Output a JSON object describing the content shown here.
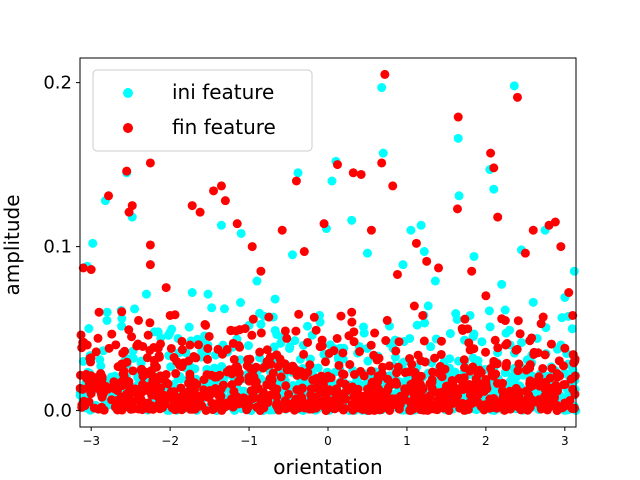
{
  "chart_data": {
    "type": "scatter",
    "title": "",
    "xlabel": "orientation",
    "ylabel": "amplitude",
    "xlim": [
      -3.1416,
      3.1416
    ],
    "ylim": [
      -0.01,
      0.215
    ],
    "xticks": [
      -3,
      -2,
      -1,
      0,
      1,
      2,
      3
    ],
    "xtick_labels": [
      "−3",
      "−2",
      "−1",
      "0",
      "1",
      "2",
      "3"
    ],
    "yticks": [
      0.0,
      0.1,
      0.2
    ],
    "ytick_labels": [
      "0.0",
      "0.1",
      "0.2"
    ],
    "grid": false,
    "legend_position": "top-left",
    "series": [
      {
        "name": "ini feature",
        "color": "#00ffff",
        "points": [
          [
            -3.05,
            0.088
          ],
          [
            -2.98,
            0.102
          ],
          [
            -2.82,
            0.128
          ],
          [
            -2.55,
            0.145
          ],
          [
            -2.48,
            0.118
          ],
          [
            -2.62,
            0.061
          ],
          [
            -2.45,
            0.062
          ],
          [
            -2.3,
            0.071
          ],
          [
            -1.72,
            0.072
          ],
          [
            -1.52,
            0.071
          ],
          [
            -1.35,
            0.113
          ],
          [
            -1.1,
            0.108
          ],
          [
            -0.9,
            0.079
          ],
          [
            -0.67,
            0.068
          ],
          [
            -0.38,
            0.145
          ],
          [
            -0.45,
            0.095
          ],
          [
            -0.1,
            0.054
          ],
          [
            -0.02,
            0.111
          ],
          [
            0.05,
            0.14
          ],
          [
            0.1,
            0.152
          ],
          [
            0.3,
            0.116
          ],
          [
            0.5,
            0.096
          ],
          [
            0.68,
            0.197
          ],
          [
            0.7,
            0.157
          ],
          [
            0.95,
            0.089
          ],
          [
            1.05,
            0.11
          ],
          [
            1.18,
            0.113
          ],
          [
            1.22,
            0.097
          ],
          [
            1.36,
            0.079
          ],
          [
            1.65,
            0.166
          ],
          [
            1.66,
            0.131
          ],
          [
            1.8,
            0.058
          ],
          [
            1.85,
            0.094
          ],
          [
            2.05,
            0.147
          ],
          [
            2.1,
            0.135
          ],
          [
            2.2,
            0.077
          ],
          [
            2.36,
            0.198
          ],
          [
            2.45,
            0.098
          ],
          [
            2.6,
            0.066
          ],
          [
            2.75,
            0.11
          ],
          [
            2.8,
            0.113
          ],
          [
            3.0,
            0.069
          ],
          [
            3.12,
            0.085
          ],
          [
            -2.8,
            0.055
          ],
          [
            -2.2,
            0.048
          ],
          [
            -1.9,
            0.044
          ],
          [
            -1.6,
            0.036
          ],
          [
            -1.0,
            0.052
          ],
          [
            -0.6,
            0.041
          ],
          [
            -0.2,
            0.046
          ],
          [
            0.2,
            0.038
          ],
          [
            0.45,
            0.051
          ],
          [
            0.85,
            0.043
          ],
          [
            1.3,
            0.039
          ],
          [
            1.55,
            0.047
          ],
          [
            1.95,
            0.042
          ],
          [
            2.3,
            0.049
          ],
          [
            2.65,
            0.044
          ],
          [
            2.95,
            0.04
          ],
          [
            -3.1,
            0.03
          ],
          [
            -2.7,
            0.021
          ],
          [
            -2.35,
            0.018
          ],
          [
            -1.8,
            0.026
          ],
          [
            -1.25,
            0.014
          ],
          [
            -0.8,
            0.028
          ],
          [
            -0.35,
            0.017
          ],
          [
            0.15,
            0.025
          ],
          [
            0.6,
            0.012
          ],
          [
            1.0,
            0.022
          ],
          [
            1.45,
            0.019
          ],
          [
            1.9,
            0.027
          ],
          [
            2.4,
            0.015
          ],
          [
            2.85,
            0.023
          ],
          [
            3.05,
            0.011
          ]
        ]
      },
      {
        "name": "fin feature",
        "color": "#ff0000",
        "points": [
          [
            -3.1,
            0.087
          ],
          [
            -3.0,
            0.086
          ],
          [
            -2.78,
            0.131
          ],
          [
            -2.55,
            0.146
          ],
          [
            -2.52,
            0.121
          ],
          [
            -2.48,
            0.125
          ],
          [
            -2.25,
            0.151
          ],
          [
            -2.25,
            0.101
          ],
          [
            -2.25,
            0.089
          ],
          [
            -2.05,
            0.075
          ],
          [
            -1.72,
            0.125
          ],
          [
            -1.62,
            0.121
          ],
          [
            -1.45,
            0.134
          ],
          [
            -1.35,
            0.137
          ],
          [
            -1.3,
            0.128
          ],
          [
            -1.15,
            0.114
          ],
          [
            -0.96,
            0.1
          ],
          [
            -0.85,
            0.085
          ],
          [
            -0.58,
            0.11
          ],
          [
            -0.4,
            0.14
          ],
          [
            -0.3,
            0.097
          ],
          [
            -0.05,
            0.114
          ],
          [
            0.12,
            0.15
          ],
          [
            0.32,
            0.145
          ],
          [
            0.42,
            0.144
          ],
          [
            0.55,
            0.11
          ],
          [
            0.72,
            0.205
          ],
          [
            0.68,
            0.151
          ],
          [
            0.82,
            0.137
          ],
          [
            0.88,
            0.083
          ],
          [
            1.12,
            0.102
          ],
          [
            1.25,
            0.091
          ],
          [
            1.4,
            0.087
          ],
          [
            1.65,
            0.179
          ],
          [
            1.64,
            0.123
          ],
          [
            1.82,
            0.085
          ],
          [
            2.0,
            0.07
          ],
          [
            2.06,
            0.157
          ],
          [
            2.1,
            0.148
          ],
          [
            2.15,
            0.118
          ],
          [
            2.4,
            0.191
          ],
          [
            2.5,
            0.096
          ],
          [
            2.6,
            0.11
          ],
          [
            2.8,
            0.113
          ],
          [
            2.88,
            0.115
          ],
          [
            2.95,
            0.1
          ],
          [
            3.05,
            0.072
          ],
          [
            -2.9,
            0.06
          ],
          [
            -2.4,
            0.055
          ],
          [
            -2.0,
            0.058
          ],
          [
            -1.55,
            0.052
          ],
          [
            -1.05,
            0.05
          ],
          [
            -0.75,
            0.057
          ],
          [
            -0.15,
            0.049
          ],
          [
            0.3,
            0.06
          ],
          [
            0.75,
            0.055
          ],
          [
            1.2,
            0.058
          ],
          [
            1.7,
            0.05
          ],
          [
            2.2,
            0.056
          ],
          [
            2.7,
            0.053
          ],
          [
            3.1,
            0.058
          ],
          [
            -3.05,
            0.04
          ],
          [
            -2.6,
            0.035
          ],
          [
            -2.15,
            0.038
          ],
          [
            -1.7,
            0.033
          ],
          [
            -1.2,
            0.041
          ],
          [
            -0.65,
            0.034
          ],
          [
            -0.1,
            0.039
          ],
          [
            0.4,
            0.036
          ],
          [
            0.9,
            0.042
          ],
          [
            1.35,
            0.032
          ],
          [
            1.8,
            0.037
          ],
          [
            2.25,
            0.04
          ],
          [
            2.75,
            0.034
          ],
          [
            3.0,
            0.038
          ],
          [
            -2.95,
            0.02
          ],
          [
            -2.5,
            0.012
          ],
          [
            -2.05,
            0.022
          ],
          [
            -1.5,
            0.009
          ],
          [
            -1.0,
            0.018
          ],
          [
            -0.5,
            0.01
          ],
          [
            0.0,
            0.021
          ],
          [
            0.5,
            0.008
          ],
          [
            1.05,
            0.016
          ],
          [
            1.5,
            0.011
          ],
          [
            2.0,
            0.019
          ],
          [
            2.55,
            0.007
          ],
          [
            3.1,
            0.013
          ],
          [
            -3.12,
            0.002
          ],
          [
            -2.4,
            0.001
          ],
          [
            -1.6,
            0.003
          ],
          [
            -0.9,
            0.002
          ],
          [
            -0.2,
            0.001
          ],
          [
            0.6,
            0.003
          ],
          [
            1.3,
            0.001
          ],
          [
            2.1,
            0.002
          ],
          [
            2.9,
            0.001
          ]
        ]
      }
    ],
    "dense_band": {
      "ymax": 0.066,
      "count_per_series": 900
    }
  }
}
